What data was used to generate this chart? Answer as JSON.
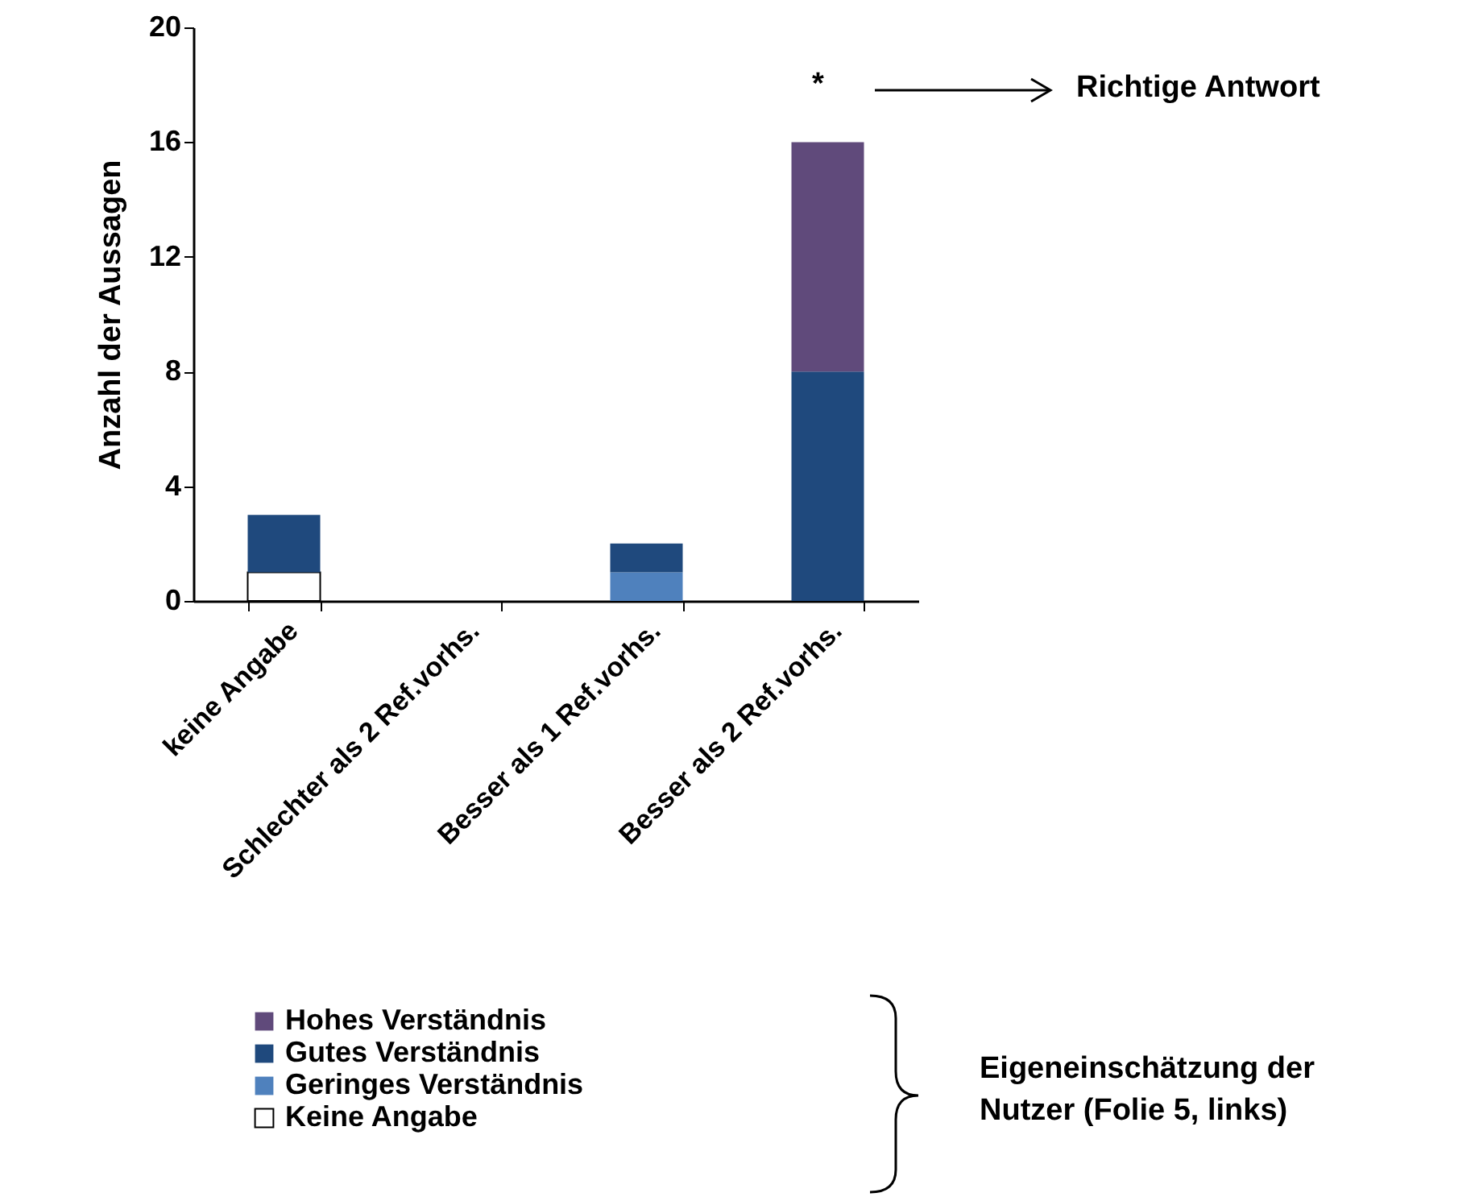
{
  "chart_data": {
    "type": "bar",
    "stacked": true,
    "ylabel": "Anzahl der Aussagen",
    "categories": [
      "keine Angabe",
      "Schlechter als 2 Ref.vorhs.",
      "Besser als 1 Ref.vorhs.",
      "Besser als 2 Ref.vorhs."
    ],
    "series": [
      {
        "name": "Keine Angabe",
        "color": "#ffffff",
        "values": [
          1,
          0,
          0,
          0
        ]
      },
      {
        "name": "Geringes Verständnis",
        "color": "#4f81bd",
        "values": [
          0,
          0,
          1,
          0
        ]
      },
      {
        "name": "Gutes Verständnis",
        "color": "#1f497d",
        "values": [
          2,
          0,
          1,
          8
        ]
      },
      {
        "name": "Hohes Verständnis",
        "color": "#604a7b",
        "values": [
          0,
          0,
          0,
          8
        ]
      }
    ],
    "ylim": [
      0,
      20
    ],
    "yticks": [
      0,
      4,
      8,
      12,
      16,
      20
    ],
    "grid": false,
    "legend": "bottom",
    "annotations": [
      "*",
      "Richtige Antwort",
      "Eigeneinschätzung der Nutzer (Folie 5, links)"
    ]
  }
}
